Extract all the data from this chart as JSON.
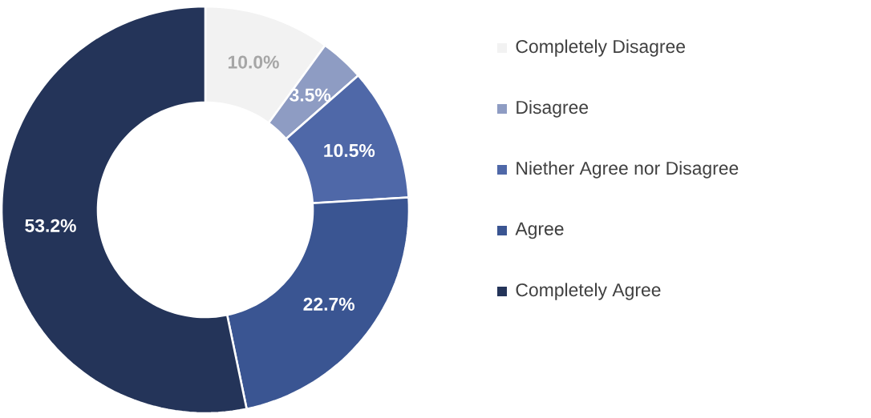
{
  "chart_data": {
    "type": "donut",
    "categories": [
      "Completely Disagree",
      "Disagree",
      "Niether Agree nor Disagree",
      "Agree",
      "Completely Agree"
    ],
    "values": [
      10.0,
      3.5,
      10.5,
      22.7,
      53.2
    ],
    "value_labels": [
      "10.0%",
      "3.5%",
      "10.5%",
      "22.7%",
      "53.2%"
    ],
    "colors": [
      "#f2f2f2",
      "#8e9cc3",
      "#4f68a8",
      "#3a5592",
      "#243459"
    ],
    "legend": "right"
  }
}
